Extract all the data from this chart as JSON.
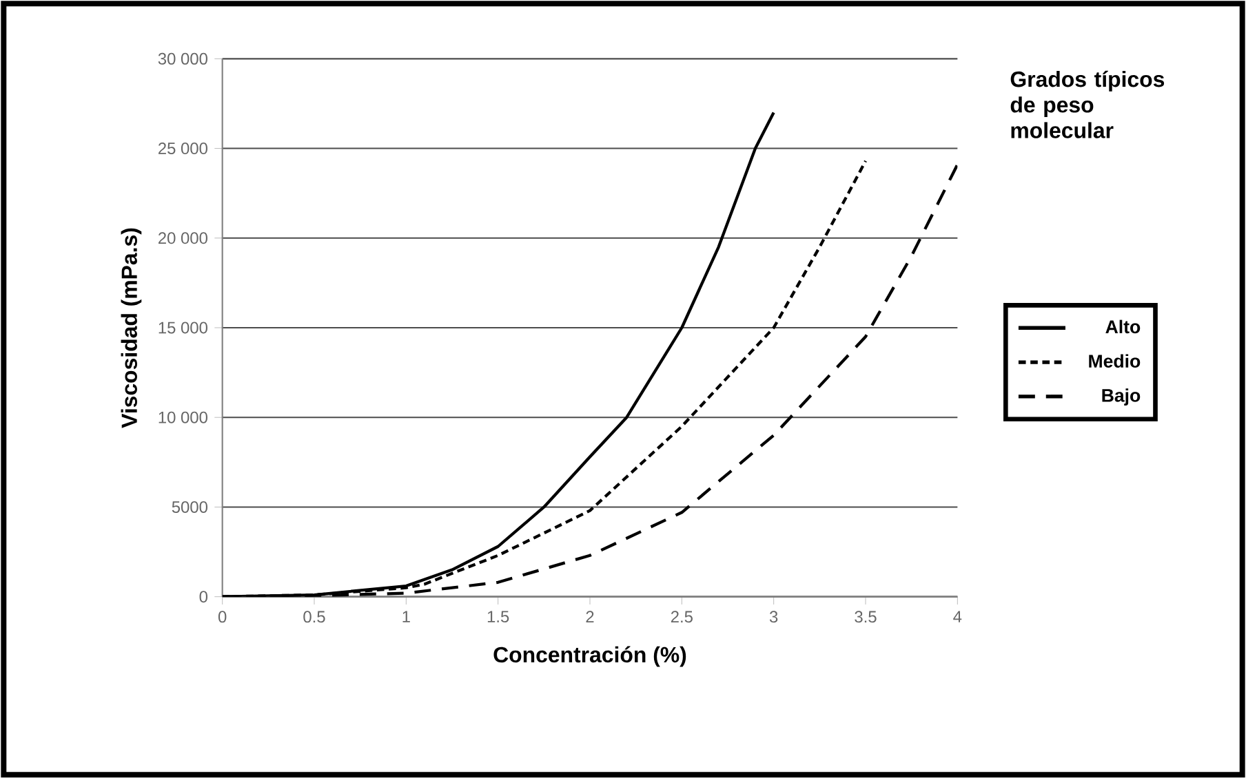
{
  "chart_data": {
    "type": "line",
    "xlabel": "Concentración (%)",
    "ylabel": "Viscosidad (mPa.s)",
    "legend_title": "Grados típicos de peso molecular",
    "xlim": [
      0,
      4
    ],
    "xticks": [
      0,
      0.5,
      1,
      1.5,
      2,
      2.5,
      3,
      3.5,
      4
    ],
    "ylim": [
      0,
      30000
    ],
    "yticks": [
      0,
      5000,
      {
        "value": 10000,
        "label": "10 000"
      },
      {
        "value": 15000,
        "label": "15 000"
      },
      {
        "value": 20000,
        "label": "20 000"
      },
      {
        "value": 25000,
        "label": "25 000"
      },
      {
        "value": 30000,
        "label": "30 000"
      }
    ],
    "grid": "y",
    "legend": "right",
    "marker": "none",
    "series": [
      {
        "name": "Alto",
        "color": "#000000",
        "line_style": "solid",
        "x": [
          0,
          0.5,
          1,
          1.25,
          1.5,
          1.75,
          2,
          2.2,
          2.5,
          2.7,
          2.9,
          3
        ],
        "values": [
          0,
          100,
          600,
          1500,
          2800,
          5000,
          7800,
          10000,
          15000,
          19500,
          25000,
          27000
        ]
      },
      {
        "name": "Medio",
        "color": "#000000",
        "line_style": "dotted",
        "x": [
          0,
          0.5,
          1,
          1.1,
          1.5,
          2,
          2.5,
          3,
          3.25,
          3.5
        ],
        "values": [
          0,
          100,
          500,
          700,
          2300,
          4800,
          9500,
          15000,
          19500,
          24300
        ]
      },
      {
        "name": "Bajo",
        "color": "#000000",
        "line_style": "dashed",
        "x": [
          0,
          0.5,
          1,
          1.5,
          2,
          2.5,
          3,
          3.5,
          3.75,
          4
        ],
        "values": [
          0,
          50,
          200,
          800,
          2300,
          4700,
          9000,
          14500,
          19000,
          24100
        ]
      }
    ]
  }
}
